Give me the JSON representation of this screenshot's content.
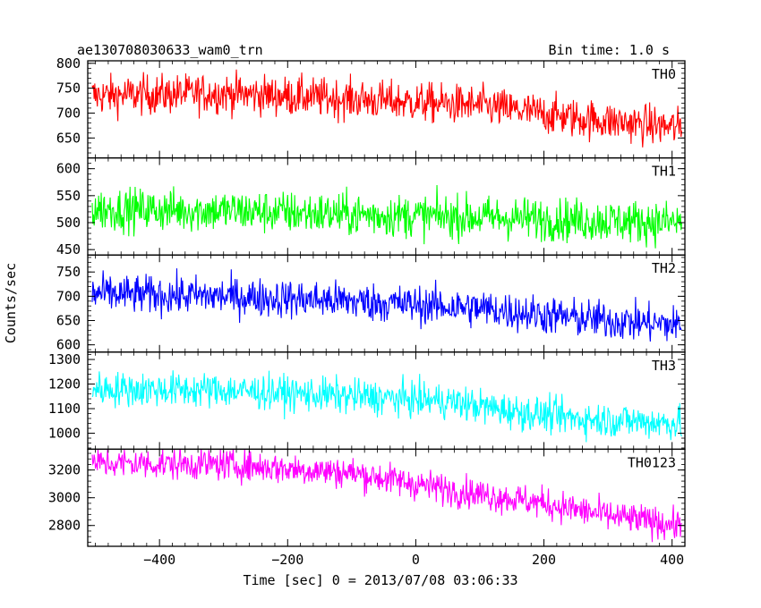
{
  "header": {
    "title": "ae130708030633_wam0_trn",
    "bin_time": "Bin time: 1.0 s"
  },
  "chart_data": {
    "type": "line",
    "xlabel": "Time [sec] 0 = 2013/07/08 03:06:33",
    "ylabel": "Counts/sec",
    "xlim": [
      -512,
      420
    ],
    "x_ticks": [
      -400,
      -200,
      0,
      200,
      400
    ],
    "grid": false,
    "panels": [
      {
        "name": "TH0",
        "color": "#ff0000",
        "ylim": [
          610,
          805
        ],
        "y_ticks": [
          650,
          700,
          750,
          800
        ],
        "trend": [
          [
            -505,
            735
          ],
          [
            -300,
            740
          ],
          [
            -100,
            728
          ],
          [
            100,
            715
          ],
          [
            250,
            690
          ],
          [
            415,
            670
          ]
        ],
        "noise_amplitude": 28
      },
      {
        "name": "TH1",
        "color": "#00ff00",
        "ylim": [
          440,
          620
        ],
        "y_ticks": [
          450,
          500,
          550,
          600
        ],
        "trend": [
          [
            -505,
            525
          ],
          [
            -300,
            522
          ],
          [
            -100,
            515
          ],
          [
            100,
            510
          ],
          [
            250,
            505
          ],
          [
            415,
            500
          ]
        ],
        "noise_amplitude": 28
      },
      {
        "name": "TH2",
        "color": "#0000ff",
        "ylim": [
          585,
          785
        ],
        "y_ticks": [
          600,
          650,
          700,
          750
        ],
        "trend": [
          [
            -505,
            705
          ],
          [
            -300,
            700
          ],
          [
            -100,
            690
          ],
          [
            100,
            675
          ],
          [
            250,
            655
          ],
          [
            415,
            640
          ]
        ],
        "noise_amplitude": 28
      },
      {
        "name": "TH3",
        "color": "#00ffff",
        "ylim": [
          935,
          1330
        ],
        "y_ticks": [
          1000,
          1100,
          1200,
          1300
        ],
        "trend": [
          [
            -505,
            1180
          ],
          [
            -300,
            1175
          ],
          [
            -100,
            1150
          ],
          [
            50,
            1130
          ],
          [
            150,
            1090
          ],
          [
            250,
            1060
          ],
          [
            415,
            1040
          ]
        ],
        "noise_amplitude": 50
      },
      {
        "name": "TH0123",
        "color": "#ff00ff",
        "ylim": [
          2650,
          3350
        ],
        "y_ticks": [
          2800,
          3000,
          3200
        ],
        "trend": [
          [
            -505,
            3250
          ],
          [
            -300,
            3240
          ],
          [
            -100,
            3180
          ],
          [
            50,
            3060
          ],
          [
            200,
            2960
          ],
          [
            300,
            2870
          ],
          [
            415,
            2800
          ]
        ],
        "noise_amplitude": 80
      }
    ]
  }
}
